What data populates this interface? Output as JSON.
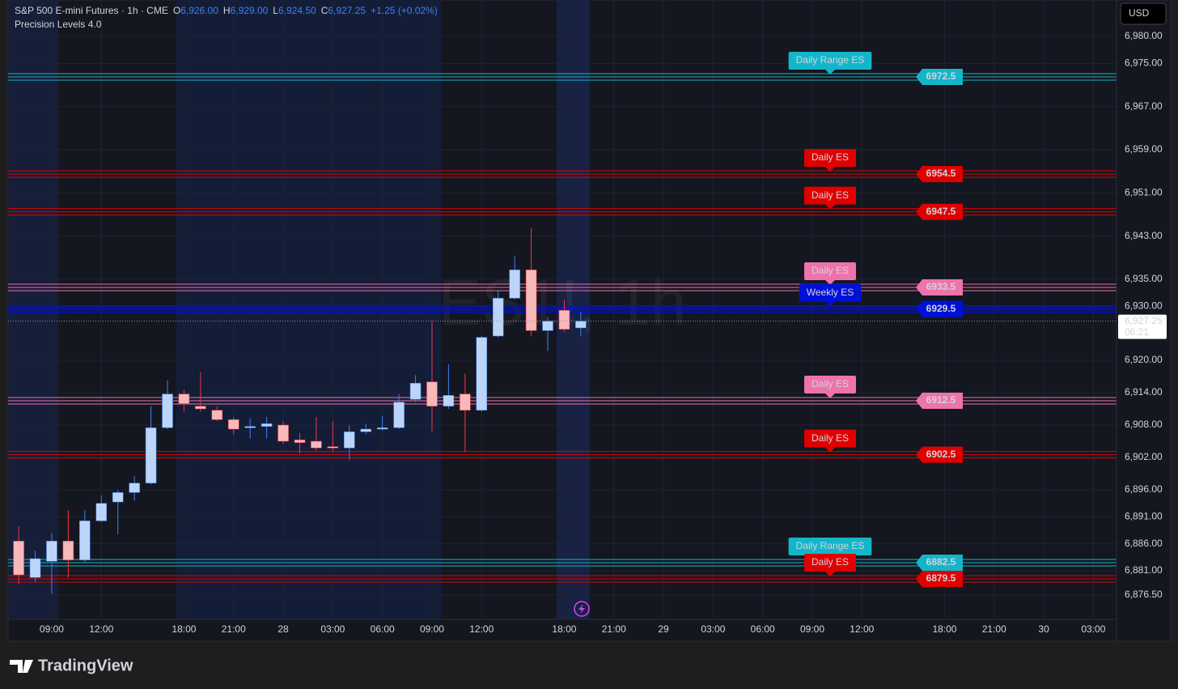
{
  "header": {
    "title": "S&P 500 E-mini Futures · 1h · CME",
    "o_label": "O",
    "o": "6,926.00",
    "h_label": "H",
    "h": "6,929.00",
    "l_label": "L",
    "l": "6,924.50",
    "c_label": "C",
    "c": "6,927.25",
    "change": "+1.25 (+0.02%)",
    "indicator": "Precision Levels 4.0",
    "currency": "USD"
  },
  "footer": {
    "brand": "TradingView"
  },
  "chart_data": {
    "type": "candlestick",
    "watermark": "ES1!, 1h",
    "x": [
      0,
      1,
      2,
      3,
      4,
      5,
      6,
      7,
      8,
      9,
      10,
      11,
      12,
      13,
      14,
      15,
      16,
      17,
      18,
      19,
      20,
      21,
      22,
      23,
      24,
      25,
      26,
      27,
      28,
      29,
      30,
      31,
      32,
      33,
      34
    ],
    "open": [
      6886.5,
      6879.75,
      6882.75,
      6886.5,
      6883,
      6890.25,
      6893.75,
      6895.5,
      6897.25,
      6907.5,
      6913.75,
      6911.5,
      6910.75,
      6909,
      6907.5,
      6907.75,
      6908,
      6905.25,
      6905,
      6904,
      6903.75,
      6906.75,
      6907.25,
      6907.5,
      6912.75,
      6916,
      6911.5,
      6913.75,
      6910.75,
      6924.5,
      6931.5,
      6936.75,
      6925.5,
      6929.25,
      6926
    ],
    "high": [
      6889.25,
      6884.75,
      6888,
      6892.25,
      6892.25,
      6895,
      6896,
      6898.5,
      6911.5,
      6916.25,
      6914.5,
      6917.75,
      6911.5,
      6909.5,
      6909.25,
      6909.5,
      6908.75,
      6906.5,
      6909.5,
      6908.75,
      6908,
      6908.25,
      6909.75,
      6913.75,
      6917.25,
      6927.25,
      6919.25,
      6917.5,
      6924.5,
      6933,
      6939.25,
      6944.5,
      6928,
      6931.25,
      6929
    ],
    "low": [
      6878.5,
      6879,
      6876.75,
      6879.75,
      6882.5,
      6890,
      6887.75,
      6894,
      6897,
      6907.25,
      6910.5,
      6910.5,
      6908.75,
      6906.25,
      6905.5,
      6905.5,
      6904.5,
      6902.75,
      6903.25,
      6903,
      6901.5,
      6906.25,
      6907,
      6907.25,
      6912.25,
      6906.75,
      6911,
      6903,
      6910.5,
      6924.25,
      6931.25,
      6924.5,
      6921.75,
      6925.25,
      6924.5
    ],
    "close": [
      6880.25,
      6883.25,
      6886.5,
      6883,
      6890.25,
      6893.5,
      6895.5,
      6897.25,
      6907.5,
      6913.75,
      6912,
      6911,
      6909,
      6907.25,
      6907.75,
      6908.25,
      6905,
      6904.75,
      6903.75,
      6903.75,
      6906.75,
      6907.25,
      6907.5,
      6912.25,
      6915.75,
      6911.5,
      6913.5,
      6910.75,
      6924.25,
      6931.5,
      6936.75,
      6925.5,
      6927.25,
      6925.75,
      6927.25
    ],
    "up_color": "#bbd4f8",
    "up_wick": "#3b82f6",
    "down_color": "#f9b8ba",
    "down_wick": "#f23645",
    "xlim": [
      -0.64,
      66.4
    ],
    "ylim": [
      6872,
      6986.75
    ],
    "xticks": [
      {
        "value": 2,
        "label": "09:00"
      },
      {
        "value": 5,
        "label": "12:00"
      },
      {
        "value": 10,
        "label": "18:00"
      },
      {
        "value": 13,
        "label": "21:00"
      },
      {
        "value": 16,
        "label": "28"
      },
      {
        "value": 19,
        "label": "03:00"
      },
      {
        "value": 22,
        "label": "06:00"
      },
      {
        "value": 25,
        "label": "09:00"
      },
      {
        "value": 28,
        "label": "12:00"
      },
      {
        "value": 33,
        "label": "18:00"
      },
      {
        "value": 36,
        "label": "21:00"
      },
      {
        "value": 39,
        "label": "29"
      },
      {
        "value": 42,
        "label": "03:00"
      },
      {
        "value": 45,
        "label": "06:00"
      },
      {
        "value": 48,
        "label": "09:00"
      },
      {
        "value": 51,
        "label": "12:00"
      },
      {
        "value": 56,
        "label": "18:00"
      },
      {
        "value": 59,
        "label": "21:00"
      },
      {
        "value": 62,
        "label": "30"
      },
      {
        "value": 65,
        "label": "03:00"
      }
    ],
    "yticks": [
      {
        "value": 6980,
        "label": "6,980.00"
      },
      {
        "value": 6975,
        "label": "6,975.00"
      },
      {
        "value": 6967,
        "label": "6,967.00"
      },
      {
        "value": 6959,
        "label": "6,959.00"
      },
      {
        "value": 6951,
        "label": "6,951.00"
      },
      {
        "value": 6943,
        "label": "6,943.00"
      },
      {
        "value": 6935,
        "label": "6,935.00"
      },
      {
        "value": 6930,
        "label": "6,930.00"
      },
      {
        "value": 6920,
        "label": "6,920.00"
      },
      {
        "value": 6914,
        "label": "6,914.00"
      },
      {
        "value": 6908,
        "label": "6,908.00"
      },
      {
        "value": 6902,
        "label": "6,902.00"
      },
      {
        "value": 6896,
        "label": "6,896.00"
      },
      {
        "value": 6891,
        "label": "6,891.00"
      },
      {
        "value": 6886,
        "label": "6,886.00"
      },
      {
        "value": 6881,
        "label": "6,881.00"
      },
      {
        "value": 6876.5,
        "label": "6,876.50"
      }
    ],
    "grid": true,
    "last_price": {
      "value": 6927.25,
      "label": "6,927.25",
      "countdown": "06:21"
    },
    "levels": [
      {
        "label": "Daily Range ES",
        "value": 6972.5,
        "color": "#13b6c9",
        "filled": false
      },
      {
        "label": "Daily ES",
        "value": 6954.5,
        "color": "#e00000",
        "filled": false
      },
      {
        "label": "Daily ES",
        "value": 6947.5,
        "color": "#e00000",
        "filled": false
      },
      {
        "label": "Daily ES",
        "value": 6933.5,
        "color": "#ee72ac",
        "filled": false
      },
      {
        "label": "Weekly ES",
        "value": 6929.5,
        "color": "#0010d8",
        "filled": true
      },
      {
        "label": "Daily ES",
        "value": 6912.5,
        "color": "#ee72ac",
        "filled": false
      },
      {
        "label": "Daily ES",
        "value": 6902.5,
        "color": "#e00000",
        "filled": false
      },
      {
        "label": "Daily Range ES",
        "value": 6882.5,
        "color": "#13b6c9",
        "filled": false
      },
      {
        "label": "Daily ES",
        "value": 6879.5,
        "color": "#e00000",
        "filled": false
      }
    ]
  }
}
